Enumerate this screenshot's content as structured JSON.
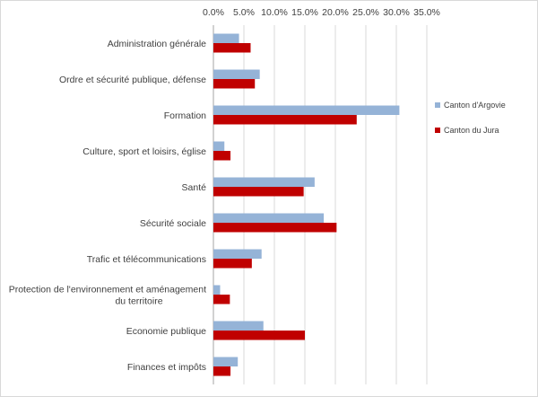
{
  "chart_data": {
    "type": "bar",
    "orientation": "horizontal",
    "title": "",
    "xlabel": "",
    "ylabel": "",
    "xlim": [
      0,
      35
    ],
    "x_ticks": [
      "0.0%",
      "5.0%",
      "10.0%",
      "15.0%",
      "20.0%",
      "25.0%",
      "30.0%",
      "35.0%"
    ],
    "grid": true,
    "legend_position": "right",
    "categories": [
      [
        "Administration générale"
      ],
      [
        "Ordre et sécurité publique, défense"
      ],
      [
        "Formation"
      ],
      [
        "Culture, sport et loisirs, église"
      ],
      [
        "Santé"
      ],
      [
        "Sécurité sociale"
      ],
      [
        "Trafic et télécommunications"
      ],
      [
        "Protection de l'environnement et aménagement",
        "du territoire"
      ],
      [
        "Economie publique"
      ],
      [
        "Finances et impôts"
      ]
    ],
    "series": [
      {
        "name": "Canton d'Argovie",
        "color": "#95b3d7",
        "values": [
          4.2,
          7.6,
          30.5,
          1.8,
          16.6,
          18.1,
          7.9,
          1.1,
          8.2,
          4.0
        ]
      },
      {
        "name": "Canton du Jura",
        "color": "#c00000",
        "values": [
          6.1,
          6.8,
          23.5,
          2.8,
          14.8,
          20.2,
          6.3,
          2.7,
          15.0,
          2.8
        ]
      }
    ]
  }
}
